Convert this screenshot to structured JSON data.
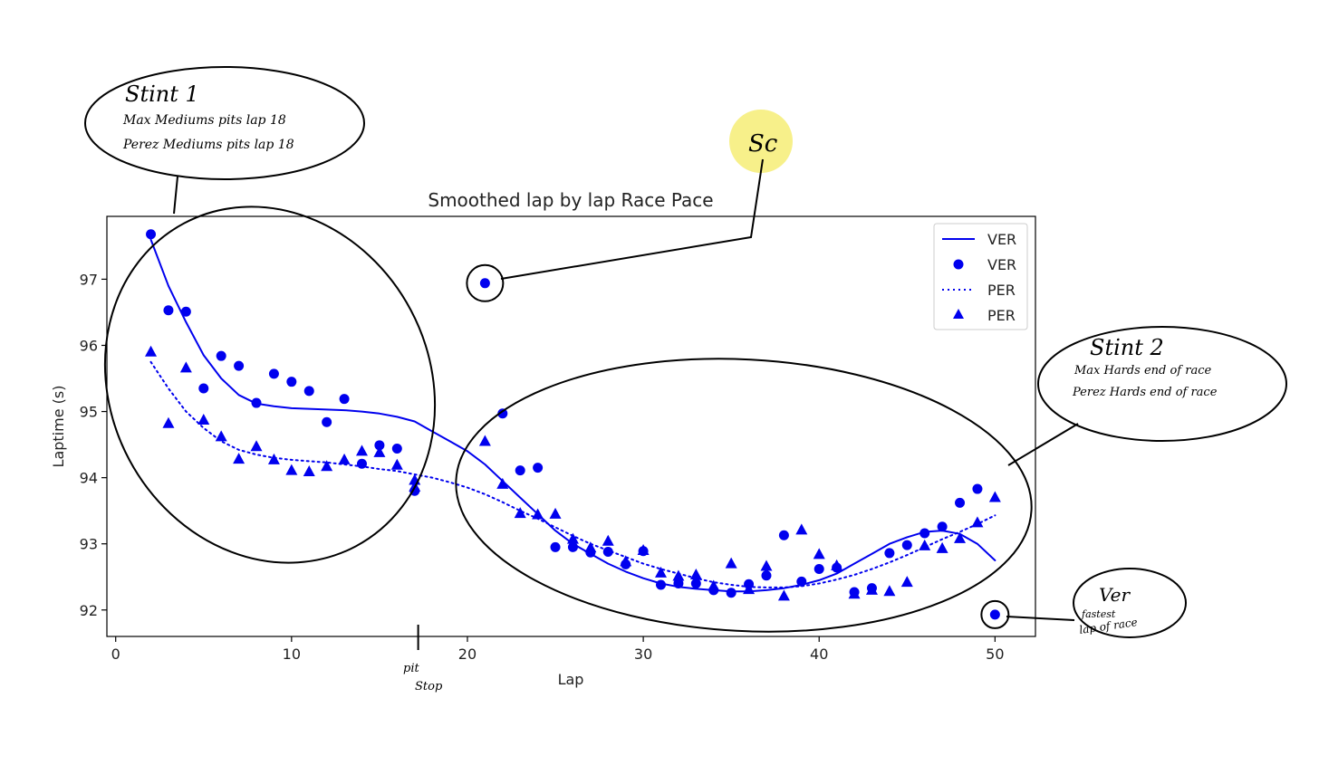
{
  "chart_data": {
    "type": "scatter",
    "title": "Smoothed lap by lap Race Pace",
    "xlabel": "Lap",
    "ylabel": "Laptime (s)",
    "xlim": [
      -0.5,
      52.3
    ],
    "ylim": [
      91.6,
      97.95
    ],
    "x_ticks": [
      0,
      10,
      20,
      30,
      40,
      50
    ],
    "y_ticks": [
      92,
      93,
      94,
      95,
      96,
      97
    ],
    "grid": false,
    "legend_position": "top-right",
    "color": "#0000ee",
    "series": [
      {
        "name": "VER",
        "kind": "smoothed-line",
        "line_style": "solid",
        "x": [
          2,
          3,
          4,
          5,
          6,
          7,
          8,
          9,
          10,
          11,
          12,
          13,
          14,
          15,
          16,
          17,
          18,
          19,
          20,
          21,
          22,
          23,
          24,
          25,
          26,
          27,
          28,
          29,
          30,
          31,
          32,
          33,
          34,
          35,
          36,
          37,
          38,
          39,
          40,
          41,
          42,
          43,
          44,
          45,
          46,
          47,
          48,
          49,
          50
        ],
        "y": [
          97.6,
          96.9,
          96.35,
          95.85,
          95.5,
          95.25,
          95.12,
          95.08,
          95.05,
          95.04,
          95.03,
          95.02,
          95.0,
          94.97,
          94.92,
          94.85,
          94.7,
          94.55,
          94.4,
          94.2,
          93.95,
          93.7,
          93.45,
          93.2,
          93.0,
          92.85,
          92.7,
          92.58,
          92.48,
          92.4,
          92.35,
          92.32,
          92.3,
          92.28,
          92.28,
          92.3,
          92.33,
          92.38,
          92.45,
          92.55,
          92.7,
          92.85,
          93.0,
          93.1,
          93.18,
          93.2,
          93.15,
          93.0,
          92.75
        ]
      },
      {
        "name": "VER",
        "kind": "points",
        "marker": "circle",
        "x": [
          2,
          3,
          4,
          5,
          6,
          7,
          8,
          9,
          10,
          11,
          12,
          13,
          14,
          15,
          16,
          17,
          21,
          22,
          23,
          24,
          25,
          26,
          27,
          28,
          29,
          30,
          31,
          32,
          33,
          34,
          35,
          36,
          37,
          38,
          39,
          40,
          41,
          42,
          43,
          44,
          45,
          46,
          47,
          48,
          49,
          50
        ],
        "y": [
          97.68,
          96.53,
          96.51,
          95.35,
          95.84,
          95.69,
          95.13,
          95.57,
          95.45,
          95.31,
          94.84,
          95.19,
          94.21,
          94.49,
          94.44,
          93.8,
          96.94,
          94.97,
          94.11,
          94.15,
          92.95,
          92.95,
          92.87,
          92.88,
          92.69,
          92.89,
          92.38,
          92.4,
          92.4,
          92.3,
          92.26,
          92.39,
          92.52,
          93.13,
          92.43,
          92.62,
          92.64,
          92.27,
          92.33,
          92.86,
          92.98,
          93.16,
          93.26,
          93.62,
          93.83,
          91.93
        ]
      },
      {
        "name": "PER",
        "kind": "smoothed-line",
        "line_style": "dotted",
        "x": [
          2,
          3,
          4,
          5,
          6,
          7,
          8,
          9,
          10,
          11,
          12,
          13,
          14,
          15,
          16,
          17,
          18,
          19,
          20,
          21,
          22,
          23,
          24,
          25,
          26,
          27,
          28,
          29,
          30,
          31,
          32,
          33,
          34,
          35,
          36,
          37,
          38,
          39,
          40,
          41,
          42,
          43,
          44,
          45,
          46,
          47,
          48,
          49,
          50
        ],
        "y": [
          95.75,
          95.35,
          95.0,
          94.75,
          94.55,
          94.42,
          94.35,
          94.3,
          94.27,
          94.25,
          94.23,
          94.2,
          94.17,
          94.13,
          94.1,
          94.05,
          94.0,
          93.93,
          93.85,
          93.75,
          93.63,
          93.5,
          93.38,
          93.25,
          93.12,
          93.0,
          92.9,
          92.8,
          92.7,
          92.62,
          92.55,
          92.48,
          92.42,
          92.38,
          92.35,
          92.34,
          92.34,
          92.36,
          92.4,
          92.46,
          92.53,
          92.62,
          92.72,
          92.83,
          92.95,
          93.07,
          93.18,
          93.3,
          93.43
        ]
      },
      {
        "name": "PER",
        "kind": "points",
        "marker": "triangle",
        "x": [
          2,
          3,
          4,
          5,
          6,
          7,
          8,
          9,
          10,
          11,
          12,
          13,
          14,
          15,
          16,
          17,
          17,
          21,
          22,
          23,
          24,
          25,
          26,
          27,
          28,
          29,
          30,
          31,
          32,
          33,
          34,
          35,
          36,
          37,
          38,
          39,
          40,
          41,
          42,
          43,
          44,
          45,
          46,
          47,
          48,
          49,
          50
        ],
        "y": [
          95.9,
          94.82,
          95.66,
          94.87,
          94.62,
          94.28,
          94.47,
          94.27,
          94.11,
          94.09,
          94.17,
          94.27,
          94.4,
          94.38,
          94.19,
          93.96,
          93.86,
          94.55,
          93.9,
          93.46,
          93.44,
          93.45,
          93.07,
          92.94,
          93.04,
          92.73,
          92.9,
          92.56,
          92.51,
          92.53,
          92.36,
          92.7,
          92.31,
          92.66,
          92.21,
          93.21,
          92.84,
          92.67,
          92.24,
          92.3,
          92.28,
          92.42,
          92.97,
          92.93,
          93.08,
          93.32,
          93.7
        ]
      }
    ],
    "legend": [
      {
        "label": "VER",
        "symbol": "solid-line"
      },
      {
        "label": "VER",
        "symbol": "circle"
      },
      {
        "label": "PER",
        "symbol": "dotted-line"
      },
      {
        "label": "PER",
        "symbol": "triangle"
      }
    ]
  },
  "annotations": {
    "stint1": {
      "title": "Stint 1",
      "line1": "Max Mediums pits lap 18",
      "line2": "Perez Mediums pits lap 18"
    },
    "stint2": {
      "title": "Stint 2",
      "line1": "Max Hards end of race",
      "line2": "Perez Hards end of race"
    },
    "sc": {
      "label": "Sc",
      "highlight_color": "#f7f08a",
      "point_x": 21,
      "point_y": 96.94
    },
    "fastest": {
      "line1": "Ver",
      "line2": "fastest",
      "line3": "lap of race",
      "point_x": 50,
      "point_y": 91.93
    },
    "pit": {
      "line1": "pit",
      "line2": "Stop",
      "lap": 17.2
    }
  }
}
